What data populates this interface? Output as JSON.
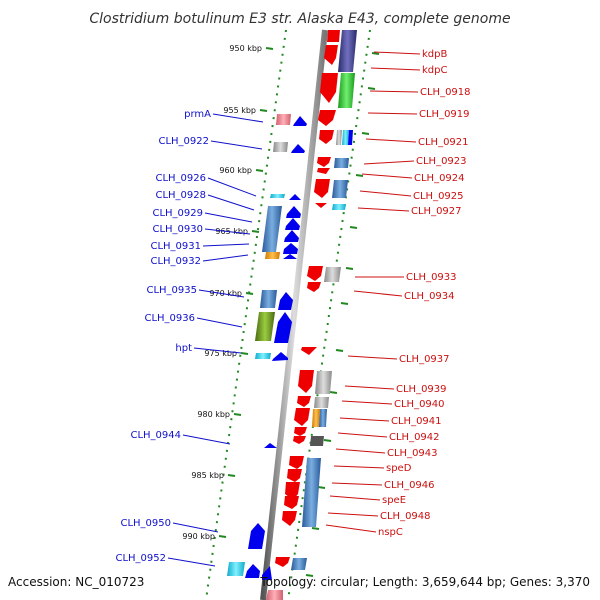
{
  "title": "Clostridium botulinum E3 str. Alaska E43, complete genome",
  "accession": "Accession: NC_010723",
  "topology": "Topology: circular; Length: 3,659,644 bp; Genes: 3,370",
  "scale_labels": [
    "950 kbp",
    "955 kbp",
    "960 kbp",
    "965 kbp",
    "970 kbp",
    "975 kbp",
    "980 kbp",
    "985 kbp",
    "990 kbp"
  ],
  "left_genes": [
    "prmA",
    "CLH_0922",
    "CLH_0926",
    "CLH_0928",
    "CLH_0929",
    "CLH_0930",
    "CLH_0931",
    "CLH_0932",
    "CLH_0935",
    "CLH_0936",
    "hpt",
    "CLH_0944",
    "CLH_0950",
    "CLH_0952"
  ],
  "right_genes": [
    "kdpB",
    "kdpC",
    "CLH_0918",
    "CLH_0919",
    "CLH_0921",
    "CLH_0923",
    "CLH_0924",
    "CLH_0925",
    "CLH_0927",
    "CLH_0933",
    "CLH_0934",
    "CLH_0937",
    "CLH_0939",
    "CLH_0940",
    "CLH_0941",
    "CLH_0942",
    "CLH_0943",
    "speD",
    "CLH_0946",
    "speE",
    "CLH_0948",
    "nspC"
  ],
  "colors": {
    "forward_strand": "#0000ee",
    "reverse_strand": "#ee0000",
    "left_labels": "#1010cc",
    "right_labels": "#cc1010",
    "backbone": "#888888",
    "ticks": "#228822"
  }
}
